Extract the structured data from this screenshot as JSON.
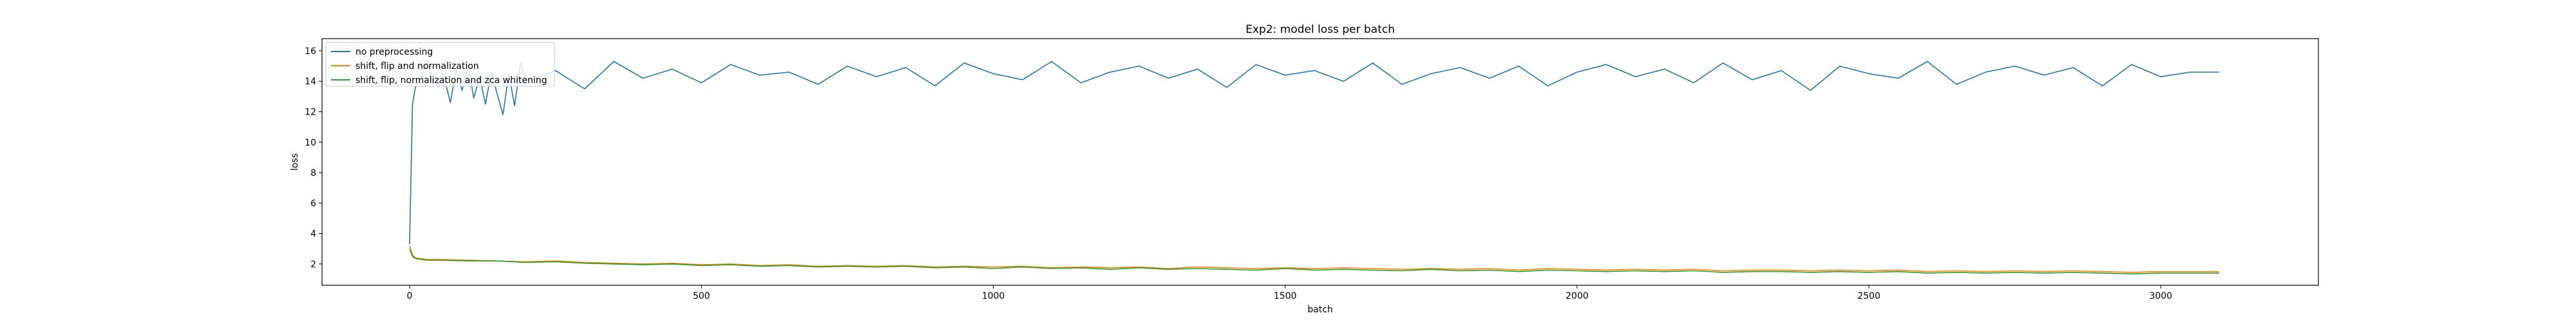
{
  "chart_data": {
    "type": "line",
    "title": "Exp2: model loss per batch",
    "xlabel": "batch",
    "ylabel": "loss",
    "xlim": [
      -150,
      3270
    ],
    "ylim": [
      0.6,
      16.8
    ],
    "xticks": [
      0,
      500,
      1000,
      1500,
      2000,
      2500,
      3000
    ],
    "yticks": [
      2,
      4,
      6,
      8,
      10,
      12,
      14,
      16
    ],
    "grid": false,
    "legend_position": "top-left",
    "series": [
      {
        "name": "no preprocessing",
        "color": "#1f77b4",
        "x": [
          0,
          5,
          10,
          20,
          30,
          40,
          50,
          60,
          70,
          80,
          90,
          100,
          110,
          120,
          130,
          140,
          150,
          160,
          170,
          180,
          190,
          200,
          250,
          300,
          350,
          400,
          450,
          500,
          550,
          600,
          650,
          700,
          750,
          800,
          850,
          900,
          950,
          1000,
          1050,
          1100,
          1150,
          1200,
          1250,
          1300,
          1350,
          1400,
          1450,
          1500,
          1550,
          1600,
          1650,
          1700,
          1750,
          1800,
          1850,
          1900,
          1950,
          2000,
          2050,
          2100,
          2150,
          2200,
          2250,
          2300,
          2350,
          2400,
          2450,
          2500,
          2550,
          2600,
          2650,
          2700,
          2750,
          2800,
          2850,
          2900,
          2950,
          3000,
          3050,
          3100
        ],
        "values": [
          3.3,
          12.5,
          13.6,
          14.2,
          15.4,
          13.8,
          15.0,
          14.1,
          12.6,
          14.8,
          13.4,
          15.1,
          12.9,
          14.3,
          12.5,
          14.6,
          13.2,
          11.8,
          14.5,
          12.4,
          15.2,
          14.0,
          14.7,
          13.5,
          15.3,
          14.2,
          14.8,
          13.9,
          15.1,
          14.4,
          14.6,
          13.8,
          15.0,
          14.3,
          14.9,
          13.7,
          15.2,
          14.5,
          14.1,
          15.3,
          13.9,
          14.6,
          15.0,
          14.2,
          14.8,
          13.6,
          15.1,
          14.4,
          14.7,
          14.0,
          15.2,
          13.8,
          14.5,
          14.9,
          14.2,
          15.0,
          13.7,
          14.6,
          15.1,
          14.3,
          14.8,
          13.9,
          15.2,
          14.1,
          14.7,
          13.4,
          15.0,
          14.5,
          14.2,
          15.3,
          13.8,
          14.6,
          15.0,
          14.4,
          14.9,
          13.7,
          15.1,
          14.3,
          14.6,
          14.6
        ]
      },
      {
        "name": "shift, flip and normalization",
        "color": "#ff7f0e",
        "x": [
          0,
          5,
          10,
          20,
          30,
          50,
          100,
          150,
          200,
          250,
          300,
          350,
          400,
          450,
          500,
          550,
          600,
          650,
          700,
          750,
          800,
          850,
          900,
          950,
          1000,
          1050,
          1100,
          1150,
          1200,
          1250,
          1300,
          1350,
          1400,
          1450,
          1500,
          1550,
          1600,
          1650,
          1700,
          1750,
          1800,
          1850,
          1900,
          1950,
          2000,
          2050,
          2100,
          2150,
          2200,
          2250,
          2300,
          2350,
          2400,
          2450,
          2500,
          2550,
          2600,
          2650,
          2700,
          2750,
          2800,
          2850,
          2900,
          2950,
          3000,
          3050,
          3100
        ],
        "values": [
          3.2,
          2.6,
          2.4,
          2.35,
          2.3,
          2.3,
          2.25,
          2.2,
          2.15,
          2.2,
          2.1,
          2.05,
          2.0,
          2.05,
          1.95,
          2.0,
          1.9,
          1.95,
          1.85,
          1.9,
          1.85,
          1.9,
          1.8,
          1.85,
          1.8,
          1.85,
          1.75,
          1.8,
          1.75,
          1.8,
          1.7,
          1.8,
          1.75,
          1.7,
          1.75,
          1.7,
          1.75,
          1.7,
          1.65,
          1.7,
          1.65,
          1.7,
          1.6,
          1.7,
          1.65,
          1.6,
          1.65,
          1.6,
          1.65,
          1.55,
          1.6,
          1.6,
          1.55,
          1.6,
          1.55,
          1.6,
          1.5,
          1.55,
          1.5,
          1.55,
          1.5,
          1.55,
          1.5,
          1.45,
          1.5,
          1.5,
          1.5
        ]
      },
      {
        "name": "shift, flip, normalization and zca whitening",
        "color": "#2ca02c",
        "x": [
          0,
          5,
          10,
          20,
          30,
          50,
          100,
          150,
          200,
          250,
          300,
          350,
          400,
          450,
          500,
          550,
          600,
          650,
          700,
          750,
          800,
          850,
          900,
          950,
          1000,
          1050,
          1100,
          1150,
          1200,
          1250,
          1300,
          1350,
          1400,
          1450,
          1500,
          1550,
          1600,
          1650,
          1700,
          1750,
          1800,
          1850,
          1900,
          1950,
          2000,
          2050,
          2100,
          2150,
          2200,
          2250,
          2300,
          2350,
          2400,
          2450,
          2500,
          2550,
          2600,
          2650,
          2700,
          2750,
          2800,
          2850,
          2900,
          2950,
          3000,
          3050,
          3100
        ],
        "values": [
          3.0,
          2.5,
          2.35,
          2.3,
          2.25,
          2.25,
          2.2,
          2.2,
          2.1,
          2.15,
          2.05,
          2.0,
          1.95,
          2.0,
          1.9,
          1.95,
          1.85,
          1.9,
          1.8,
          1.85,
          1.8,
          1.85,
          1.75,
          1.8,
          1.7,
          1.8,
          1.7,
          1.75,
          1.65,
          1.75,
          1.65,
          1.7,
          1.65,
          1.6,
          1.7,
          1.6,
          1.65,
          1.6,
          1.55,
          1.65,
          1.55,
          1.6,
          1.5,
          1.6,
          1.55,
          1.5,
          1.55,
          1.5,
          1.55,
          1.45,
          1.5,
          1.5,
          1.45,
          1.5,
          1.45,
          1.5,
          1.4,
          1.45,
          1.4,
          1.45,
          1.4,
          1.45,
          1.4,
          1.35,
          1.4,
          1.4,
          1.4
        ]
      }
    ]
  }
}
